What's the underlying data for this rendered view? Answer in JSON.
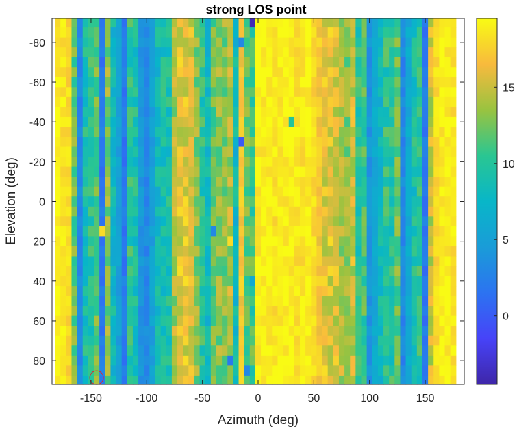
{
  "chart_data": {
    "type": "heatmap",
    "title": "strong LOS point",
    "xlabel": "Azimuth (deg)",
    "ylabel": "Elevation (deg)",
    "xlim": [
      -185,
      185
    ],
    "ylim": [
      -92,
      92
    ],
    "y_direction": "reverse",
    "x_ticks": [
      -150,
      -100,
      -50,
      0,
      50,
      100,
      150
    ],
    "x_tick_labels": [
      "-150",
      "-100",
      "-50",
      "0",
      "50",
      "100",
      "150"
    ],
    "y_ticks": [
      -80,
      -60,
      -40,
      -20,
      0,
      20,
      40,
      60,
      80
    ],
    "y_tick_labels": [
      "-80",
      "-60",
      "-40",
      "-20",
      "0",
      "20",
      "40",
      "60",
      "80"
    ],
    "colorbar": {
      "range": [
        -4.5,
        19.5
      ],
      "ticks": [
        0,
        5,
        10,
        15
      ],
      "tick_labels": [
        "0",
        "5",
        "10",
        "15"
      ],
      "colormap": "parula"
    },
    "grid": {
      "azimuth_start": -180,
      "azimuth_step": 5,
      "columns": 72,
      "elevation_start": -90,
      "elevation_step": 5,
      "rows": 37
    },
    "column_values": [
      19,
      18.5,
      18,
      12,
      3,
      9,
      10,
      12,
      2,
      13,
      8,
      5,
      2,
      10,
      9,
      4,
      3,
      5,
      8,
      9,
      9,
      14,
      16,
      16,
      15.5,
      13,
      10,
      8,
      12,
      13,
      13,
      14,
      8,
      17,
      12,
      11,
      19,
      19,
      19,
      18.5,
      19,
      19,
      19,
      18.5,
      18.5,
      19,
      18,
      17,
      16,
      16,
      15.5,
      14,
      13,
      15,
      10,
      11,
      4,
      6,
      8,
      10,
      10,
      12,
      3,
      6,
      9,
      10,
      2,
      15,
      18,
      19,
      19,
      18.5
    ],
    "cell_overrides": [
      {
        "az": -5,
        "el": -90,
        "value": -4
      },
      {
        "az": 30,
        "el": -40,
        "value": 10
      },
      {
        "az": -15,
        "el": -30,
        "value": 0
      },
      {
        "az": -140,
        "el": 15,
        "value": 18
      },
      {
        "az": -25,
        "el": 20,
        "value": 18
      },
      {
        "az": -25,
        "el": 80,
        "value": 2
      },
      {
        "az": -10,
        "el": 85,
        "value": 3
      },
      {
        "az": -15,
        "el": -80,
        "value": 3
      },
      {
        "az": -5,
        "el": 40,
        "value": 6
      },
      {
        "az": -40,
        "el": 15,
        "value": 3
      },
      {
        "az": 25,
        "el": 20,
        "value": 18
      }
    ],
    "annotation": {
      "type": "circle-marker",
      "az": -145,
      "el": 90,
      "color": "#e8202a"
    }
  }
}
